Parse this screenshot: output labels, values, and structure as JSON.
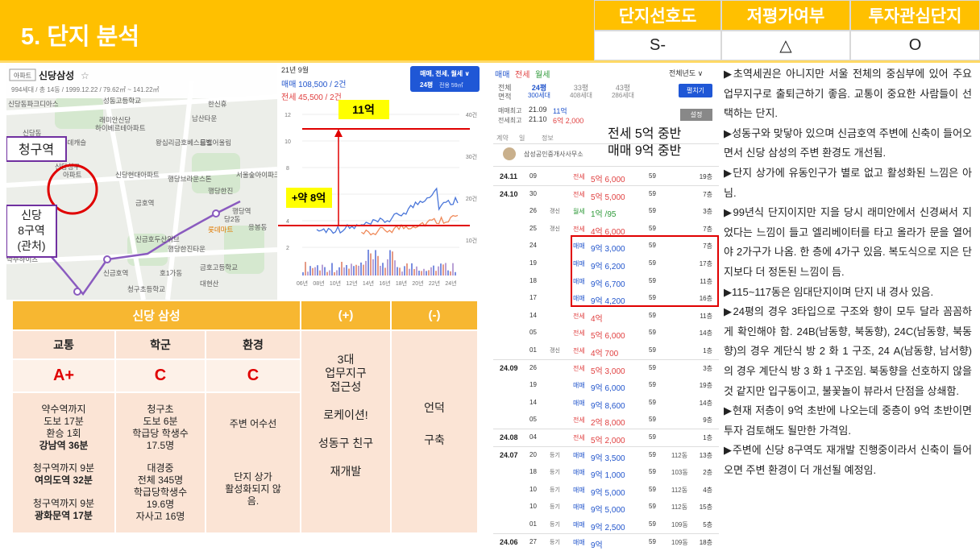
{
  "header": {
    "title": "5. 단지 분석"
  },
  "rating_table": {
    "headers": [
      "단지선호도",
      "저평가여부",
      "투자관심단지"
    ],
    "values": [
      "S-",
      "△",
      "O"
    ]
  },
  "map": {
    "tag": "아파트",
    "name": "신당삼성",
    "star": "☆",
    "info": "994세대 / 총 14동 / 1999.12.22 / 79.62㎡ ~ 141.22㎡",
    "labels": [
      "성동고등학교",
      "신당동파크디아스",
      "한신휴",
      "신당동",
      "래미안신당",
      "하이베르테아파트",
      "남산타운",
      "황학동",
      "구롯데캐슬",
      "신당현대아파트",
      "신당청구",
      "아파트",
      "왕십리금호베스트빌",
      "행당브라운스톤",
      "행당한진",
      "금호어울림",
      "행당역",
      "금호역",
      "당2동",
      "롯데마트",
      "신금호역",
      "청구초등학교",
      "약수하이츠",
      "금호고등학교",
      "신금호두산위브",
      "행당한진타운",
      "호1가동",
      "서울숲아이파크",
      "응봉동",
      "대현산"
    ],
    "callout_station": "청구역",
    "callout_zone": [
      "신당",
      "8구역",
      "(관처)"
    ]
  },
  "price_chart": {
    "date": "21년 9월",
    "sale": "매매 108,500 / 2건",
    "jeonse": "전세 45,500 / 2건",
    "filter": "매매, 전세, 월세 ∨",
    "size": "24평",
    "area": "전용 59㎡",
    "yticks": [
      "12",
      "10",
      "8",
      "6",
      "4",
      "2"
    ],
    "y2ticks": [
      "40건",
      "30건",
      "20건",
      "10건"
    ],
    "xticks": [
      "06년",
      "08년",
      "10년",
      "12년",
      "14년",
      "16년",
      "18년",
      "20년",
      "22년",
      "24년"
    ],
    "annotations": [
      "11억",
      "+약 8억"
    ]
  },
  "deals": {
    "tabs": [
      "매매",
      "전세",
      "월세"
    ],
    "period": "전체년도 ∨",
    "area_label": [
      "전체",
      "면적"
    ],
    "sizes": [
      {
        "size": "24평",
        "units": "300세대"
      },
      {
        "size": "33평",
        "units": "408세대"
      },
      {
        "size": "43평",
        "units": "286세대"
      }
    ],
    "button": "펼치기",
    "max_sale": {
      "label": "매매최고",
      "date": "21.09",
      "price": "11억"
    },
    "max_jeonse": {
      "label": "전세최고",
      "date": "21.10",
      "price": "6억 2,000"
    },
    "setting": "설정",
    "overlay": [
      "전세 5억 중반",
      "매매 9억 중반"
    ],
    "columns": [
      "계약",
      "일",
      "정보"
    ],
    "agent": "삼성공인중개사사무소",
    "rows": [
      [
        "24.11",
        "09",
        null,
        "전세",
        "5억 6,000",
        "59",
        null,
        "19층"
      ],
      [
        "24.10",
        "30",
        null,
        "전세",
        "5억 5,000",
        "59",
        null,
        "7층"
      ],
      [
        null,
        "26",
        "갱신",
        "월세",
        "1억 /95",
        "59",
        null,
        "3층"
      ],
      [
        null,
        "25",
        "갱신",
        "전세",
        "4억 6,000",
        "59",
        null,
        "7층"
      ],
      [
        null,
        "24",
        null,
        "매매",
        "9억 3,000",
        "59",
        null,
        "7층"
      ],
      [
        null,
        "19",
        null,
        "매매",
        "9억 6,200",
        "59",
        null,
        "17층"
      ],
      [
        null,
        "18",
        null,
        "매매",
        "9억 6,700",
        "59",
        null,
        "11층"
      ],
      [
        null,
        "17",
        null,
        "매매",
        "9억 4,200",
        "59",
        null,
        "16층"
      ],
      [
        null,
        "14",
        null,
        "전세",
        "4억",
        "59",
        null,
        "11층"
      ],
      [
        null,
        "05",
        null,
        "전세",
        "5억 6,000",
        "59",
        null,
        "14층"
      ],
      [
        null,
        "01",
        "갱신",
        "전세",
        "4억 700",
        "59",
        null,
        "1층"
      ],
      [
        "24.09",
        "26",
        null,
        "전세",
        "5억 3,000",
        "59",
        null,
        "3층"
      ],
      [
        null,
        "19",
        null,
        "매매",
        "9억 6,000",
        "59",
        null,
        "19층"
      ],
      [
        null,
        "14",
        null,
        "매매",
        "9억 8,600",
        "59",
        null,
        "14층"
      ],
      [
        null,
        "05",
        null,
        "전세",
        "2억 8,000",
        "59",
        null,
        "9층"
      ],
      [
        "24.08",
        "04",
        null,
        "전세",
        "5억 2,000",
        "59",
        null,
        "1층"
      ],
      [
        "24.07",
        "20",
        "등기",
        "매매",
        "9억 3,500",
        "59",
        "112동",
        "13층"
      ],
      [
        null,
        "18",
        "등기",
        "매매",
        "9억 1,000",
        "59",
        "103동",
        "2층"
      ],
      [
        null,
        "10",
        "등기",
        "매매",
        "9억 5,000",
        "59",
        "112동",
        "4층"
      ],
      [
        null,
        "10",
        "등기",
        "매매",
        "9억 5,000",
        "59",
        "112동",
        "15층"
      ],
      [
        null,
        "01",
        "등기",
        "매매",
        "9억 2,500",
        "59",
        "109동",
        "5층"
      ],
      [
        "24.06",
        "27",
        "등기",
        "매매",
        "9억",
        "59",
        "109동",
        "18층"
      ]
    ]
  },
  "quality_table": {
    "title": "신당 삼성",
    "plus": "(+)",
    "minus": "(-)",
    "categories": [
      "교통",
      "학군",
      "환경"
    ],
    "grades": [
      "A+",
      "C",
      "C"
    ],
    "details": [
      [
        {
          "lines": [
            "약수역까지",
            "도보 17분",
            "환승 1회"
          ],
          "bold": "강남역 36분"
        },
        {
          "lines": [
            "청구역까지 9분"
          ],
          "bold": "여의도역 32분"
        },
        {
          "lines": [
            "청구역까지 9분"
          ],
          "bold": "광화문역 17분"
        }
      ],
      [
        {
          "lines": [
            "청구초",
            "도보 6분",
            "학급당 학생수",
            "17.5명"
          ]
        },
        {
          "lines": [
            "대경중",
            "전체 345명",
            "학급당학생수",
            "19.6명",
            "자사고 16명"
          ]
        }
      ],
      [
        {
          "lines": [
            "주변 어수선"
          ]
        },
        {
          "lines": [
            "단지 상가",
            "활성화되지 않",
            "음."
          ]
        }
      ]
    ],
    "plus_items": [
      [
        "3대",
        "업무지구",
        "접근성"
      ],
      [
        "로케이션!"
      ],
      [
        "성동구 친구"
      ],
      [
        "재개발"
      ]
    ],
    "minus_items": [
      "언덕",
      "구축"
    ]
  },
  "notes": [
    "▶초역세권은 아니지만 서울 전체의 중심부에 있어 주요 업무지구로 출퇴근하기 좋음. 교통이 중요한 사람들이 선택하는 단지.",
    "▶성동구와 맞닿아 있으며 신금호역 주변에 신축이 들어오면서 신당 삼성의 주변 환경도 개선됨.",
    "▶단지 상가에 유동인구가 별로 없고 활성화된 느낌은 아님.",
    "▶99년식 단지이지만 지을 당시 래미안에서 신경써서 지었다는 느낌이 들고 엘리베이터를 타고 올라가 문을 열어야 2가구가 나옴. 한 층에 4가구 있음. 복도식으로 지은 단지보다 더 정돈된 느낌이 듬.",
    "▶115~117동은 임대단지이며 단지 내 경사 있음.",
    "▶24평의 경우 3타입으로 구조와 향이 모두 달라 꼼꼼하게 확인해야 함. 24B(남동향, 북동향), 24C(남동향, 북동향)의 경우 계단식 방 2 화 1 구조, 24 A(남동향, 남서향)의 경우 계단식 방 3 화 1 구조임. 북동향을 선호하지 않을 것 같지만 입구동이고, 불꽃놀이 뷰라서 단점을 상쇄함.",
    "▶현재 저층이 9억 초반에 나오는데 중층이 9억 초반이면 투자 검토해도 될만한 가격임.",
    "▶주변에 신당 8구역도 재개발 진행중이라서 신축이 들어오면 주변 환경이 더 개선될 예정임."
  ]
}
